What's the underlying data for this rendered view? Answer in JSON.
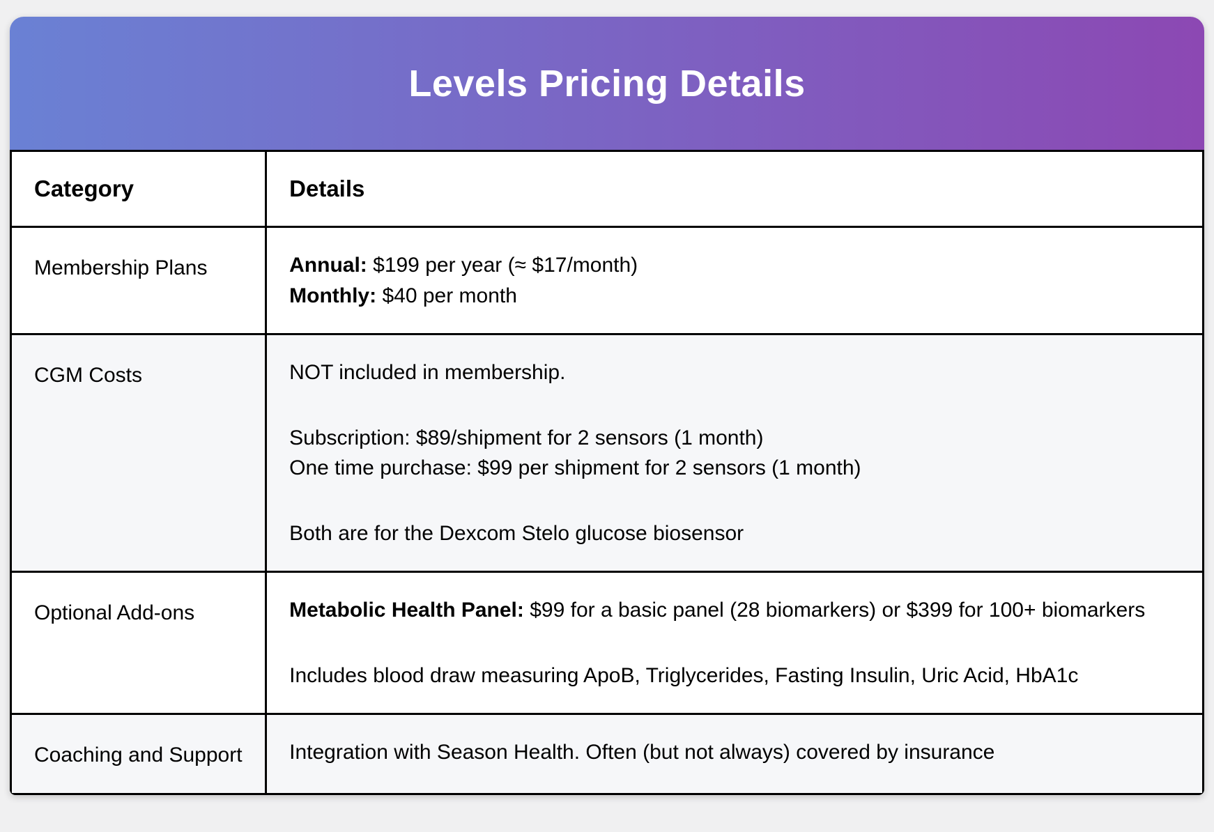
{
  "theme": {
    "page_bg": "#f0f0f1",
    "gradient_from": "#6a81d4",
    "gradient_to": "#8c48b3",
    "stripe_color": "#f6f7f9",
    "border_color": "#000000",
    "title_color": "#ffffff"
  },
  "header": {
    "title": "Levels Pricing Details"
  },
  "table": {
    "columns": [
      "Category",
      "Details"
    ],
    "rows": [
      {
        "category": "Membership Plans",
        "details": [
          {
            "bold": "Annual:",
            "text": " $199 per year (≈ $17/month)"
          },
          {
            "bold": "Monthly:",
            "text": " $40 per month"
          }
        ]
      },
      {
        "category": "CGM Costs",
        "details": [
          {
            "text": "NOT included in membership."
          },
          {
            "spacer": true
          },
          {
            "text": "Subscription: $89/shipment for 2 sensors (1 month)"
          },
          {
            "text": "One time purchase: $99 per shipment for 2 sensors (1 month)"
          },
          {
            "spacer": true
          },
          {
            "text": "Both are for the Dexcom Stelo glucose biosensor"
          }
        ]
      },
      {
        "category": "Optional Add-ons",
        "details": [
          {
            "bold": "Metabolic Health Panel:",
            "text": " $99 for a basic panel (28 biomarkers) or $399 for 100+ biomarkers"
          },
          {
            "spacer": true
          },
          {
            "text": "Includes blood draw measuring ApoB, Triglycerides, Fasting Insulin, Uric Acid, HbA1c"
          }
        ]
      },
      {
        "category": "Coaching and Support",
        "details": [
          {
            "text": "Integration with Season Health. Often (but not always) covered by insurance"
          }
        ]
      }
    ]
  }
}
